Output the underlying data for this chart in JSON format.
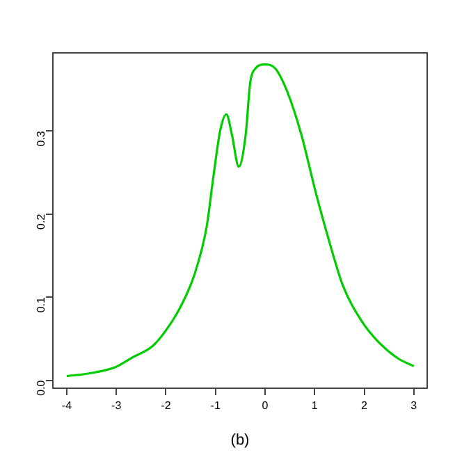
{
  "chart_data": {
    "type": "line",
    "xlabel": "(b)",
    "series": [
      {
        "color": "#00cc00",
        "x": [
          -4,
          -3.57,
          -3.01,
          -2.69,
          -2.27,
          -2.0,
          -1.7,
          -1.42,
          -1.18,
          -1.04,
          -0.9,
          -0.78,
          -0.67,
          -0.53,
          -0.39,
          -0.3,
          -0.21,
          0.0,
          0.21,
          0.45,
          0.73,
          1.01,
          1.29,
          1.57,
          1.94,
          2.32,
          2.69,
          3.0
        ],
        "values": [
          0.005,
          0.008,
          0.016,
          0.027,
          0.041,
          0.06,
          0.089,
          0.128,
          0.184,
          0.246,
          0.302,
          0.32,
          0.296,
          0.257,
          0.296,
          0.358,
          0.374,
          0.38,
          0.375,
          0.347,
          0.296,
          0.229,
          0.168,
          0.114,
          0.072,
          0.044,
          0.026,
          0.017
        ]
      }
    ],
    "xlim": [
      -4.28,
      3.27
    ],
    "xticks": [
      -4,
      -3,
      -2,
      -1,
      0,
      1,
      2,
      3
    ],
    "ylim": [
      -0.0096,
      0.394
    ],
    "yticks": [
      {
        "value": 0,
        "label": "0.0"
      },
      0.1,
      0.2,
      0.3
    ],
    "grid": false,
    "legend": false,
    "line_style": "solid"
  }
}
